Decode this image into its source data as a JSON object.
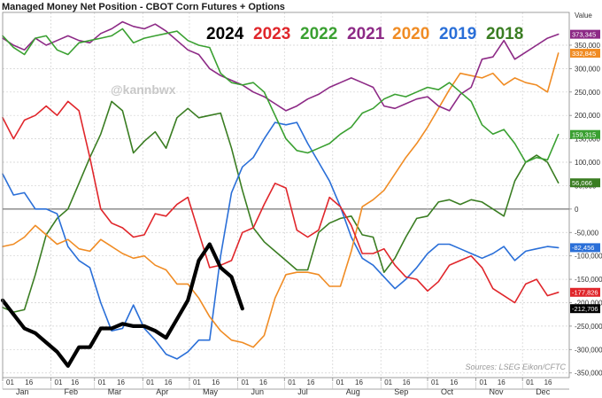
{
  "chart_data": {
    "type": "line",
    "title": "Managed Money Net Position - CBOT Corn Futures + Options",
    "watermark": "@kannbwx",
    "source": "Sources: LSEG Eikon/CFTC",
    "ylabel": "Value",
    "ylim": [
      -360000,
      420000
    ],
    "y_ticks": [
      -350000,
      -300000,
      -250000,
      -200000,
      -150000,
      -100000,
      -50000,
      0,
      50000,
      100000,
      150000,
      200000,
      250000,
      300000,
      350000
    ],
    "y_tick_labels": [
      "-350,000",
      "-300,000",
      "-250,000",
      "-200,000",
      "-150,000",
      "-100,000",
      "-50,000",
      "0",
      "50,000",
      "100,000",
      "150,000",
      "200,000",
      "250,000",
      "300,000",
      "350,000"
    ],
    "x_unit": "week of year",
    "xlim": [
      0,
      52
    ],
    "months": [
      "Jan",
      "Feb",
      "Mar",
      "Apr",
      "May",
      "Jun",
      "Jul",
      "Aug",
      "Sep",
      "Oct",
      "Nov",
      "Dec"
    ],
    "x_tick_labels": [
      "01",
      "16",
      "01",
      "16",
      "01",
      "16",
      "01",
      "16",
      "01",
      "16",
      "01",
      "16",
      "01",
      "16",
      "01",
      "16",
      "01",
      "16",
      "01",
      "16",
      "01",
      "16",
      "01",
      "16"
    ],
    "grid": true,
    "legend": "top",
    "series": [
      {
        "name": "2018",
        "color": "#3a7d22",
        "last_label": "56,066",
        "x": [
          0,
          1,
          2,
          3,
          4,
          5,
          6,
          7,
          8,
          9,
          10,
          11,
          12,
          13,
          14,
          15,
          16,
          17,
          18,
          19,
          20,
          21,
          22,
          23,
          24,
          25,
          26,
          27,
          28,
          29,
          30,
          31,
          32,
          33,
          34,
          35,
          36,
          37,
          38,
          39,
          40,
          41,
          42,
          43,
          44,
          45,
          46,
          47,
          48,
          49,
          50,
          51
        ],
        "y": [
          -210000,
          -220000,
          -215000,
          -140000,
          -55000,
          -20000,
          0,
          55000,
          110000,
          160000,
          230000,
          210000,
          120000,
          145000,
          165000,
          130000,
          195000,
          215000,
          195000,
          200000,
          205000,
          130000,
          40000,
          -40000,
          -70000,
          -90000,
          -110000,
          -130000,
          -130000,
          -50000,
          -30000,
          -20000,
          -15000,
          -55000,
          -60000,
          -135000,
          -105000,
          -60000,
          -20000,
          -15000,
          15000,
          20000,
          10000,
          20000,
          15000,
          0,
          -15000,
          60000,
          100000,
          115000,
          100000,
          56066
        ]
      },
      {
        "name": "2019",
        "color": "#2a6fd8",
        "last_label": "-82,456",
        "x": [
          0,
          1,
          2,
          3,
          4,
          5,
          6,
          7,
          8,
          9,
          10,
          11,
          12,
          13,
          14,
          15,
          16,
          17,
          18,
          19,
          20,
          21,
          22,
          23,
          24,
          25,
          26,
          27,
          28,
          29,
          30,
          31,
          32,
          33,
          34,
          35,
          36,
          37,
          38,
          39,
          40,
          41,
          42,
          43,
          44,
          45,
          46,
          47,
          48,
          49,
          50,
          51
        ],
        "y": [
          75000,
          30000,
          35000,
          0,
          0,
          -10000,
          -80000,
          -110000,
          -125000,
          -200000,
          -260000,
          -255000,
          -205000,
          -255000,
          -280000,
          -310000,
          -320000,
          -305000,
          -280000,
          -280000,
          -100000,
          35000,
          90000,
          110000,
          150000,
          185000,
          180000,
          185000,
          140000,
          100000,
          60000,
          5000,
          -60000,
          -105000,
          -120000,
          -145000,
          -170000,
          -150000,
          -125000,
          -95000,
          -75000,
          -75000,
          -85000,
          -95000,
          -105000,
          -95000,
          -80000,
          -110000,
          -90000,
          -85000,
          -80000,
          -82456
        ]
      },
      {
        "name": "2020",
        "color": "#f08c24",
        "last_label": "332,845",
        "x": [
          0,
          1,
          2,
          3,
          4,
          5,
          6,
          7,
          8,
          9,
          10,
          11,
          12,
          13,
          14,
          15,
          16,
          17,
          18,
          19,
          20,
          21,
          22,
          23,
          24,
          25,
          26,
          27,
          28,
          29,
          30,
          31,
          32,
          33,
          34,
          35,
          36,
          37,
          38,
          39,
          40,
          41,
          42,
          43,
          44,
          45,
          46,
          47,
          48,
          49,
          50,
          51
        ],
        "y": [
          -80000,
          -75000,
          -60000,
          -35000,
          -55000,
          -75000,
          -65000,
          -85000,
          -90000,
          -65000,
          -80000,
          -95000,
          -105000,
          -100000,
          -120000,
          -130000,
          -160000,
          -160000,
          -190000,
          -230000,
          -260000,
          -280000,
          -285000,
          -295000,
          -270000,
          -190000,
          -140000,
          -135000,
          -135000,
          -140000,
          -165000,
          -165000,
          -90000,
          5000,
          20000,
          40000,
          75000,
          110000,
          140000,
          175000,
          215000,
          255000,
          290000,
          285000,
          280000,
          290000,
          265000,
          280000,
          270000,
          265000,
          250000,
          332845
        ]
      },
      {
        "name": "2021",
        "color": "#8d2a86",
        "last_label": "373,345",
        "x": [
          0,
          1,
          2,
          3,
          4,
          5,
          6,
          7,
          8,
          9,
          10,
          11,
          12,
          13,
          14,
          15,
          16,
          17,
          18,
          19,
          20,
          21,
          22,
          23,
          24,
          25,
          26,
          27,
          28,
          29,
          30,
          31,
          32,
          33,
          34,
          35,
          36,
          37,
          38,
          39,
          40,
          41,
          42,
          43,
          44,
          45,
          46,
          47,
          48,
          49,
          50,
          51
        ],
        "y": [
          365000,
          350000,
          340000,
          365000,
          350000,
          360000,
          370000,
          360000,
          355000,
          375000,
          385000,
          400000,
          390000,
          385000,
          395000,
          380000,
          360000,
          340000,
          330000,
          300000,
          285000,
          275000,
          265000,
          250000,
          240000,
          225000,
          210000,
          220000,
          235000,
          245000,
          260000,
          270000,
          280000,
          270000,
          260000,
          220000,
          215000,
          225000,
          235000,
          240000,
          220000,
          210000,
          245000,
          260000,
          320000,
          325000,
          360000,
          320000,
          335000,
          350000,
          365000,
          373345
        ]
      },
      {
        "name": "2022",
        "color": "#3aa031",
        "last_label": "159,315",
        "x": [
          0,
          1,
          2,
          3,
          4,
          5,
          6,
          7,
          8,
          9,
          10,
          11,
          12,
          13,
          14,
          15,
          16,
          17,
          18,
          19,
          20,
          21,
          22,
          23,
          24,
          25,
          26,
          27,
          28,
          29,
          30,
          31,
          32,
          33,
          34,
          35,
          36,
          37,
          38,
          39,
          40,
          41,
          42,
          43,
          44,
          45,
          46,
          47,
          48,
          49,
          50,
          51
        ],
        "y": [
          370000,
          345000,
          330000,
          365000,
          370000,
          340000,
          330000,
          355000,
          360000,
          365000,
          370000,
          385000,
          355000,
          365000,
          370000,
          375000,
          380000,
          360000,
          350000,
          345000,
          290000,
          270000,
          265000,
          270000,
          250000,
          200000,
          150000,
          125000,
          120000,
          130000,
          140000,
          160000,
          175000,
          205000,
          215000,
          235000,
          245000,
          240000,
          250000,
          260000,
          255000,
          270000,
          250000,
          230000,
          180000,
          160000,
          170000,
          140000,
          100000,
          110000,
          105000,
          159315
        ]
      },
      {
        "name": "2023",
        "color": "#e0262b",
        "last_label": "-177,826",
        "x": [
          0,
          1,
          2,
          3,
          4,
          5,
          6,
          7,
          8,
          9,
          10,
          11,
          12,
          13,
          14,
          15,
          16,
          17,
          18,
          19,
          20,
          21,
          22,
          23,
          24,
          25,
          26,
          27,
          28,
          29,
          30,
          31,
          32,
          33,
          34,
          35,
          36,
          37,
          38,
          39,
          40,
          41,
          42,
          43,
          44,
          45,
          46,
          47,
          48,
          49,
          50,
          51
        ],
        "y": [
          195000,
          150000,
          190000,
          200000,
          220000,
          200000,
          230000,
          210000,
          110000,
          0,
          -30000,
          -40000,
          -60000,
          -55000,
          -10000,
          -15000,
          10000,
          25000,
          -50000,
          -125000,
          -120000,
          -110000,
          -50000,
          -40000,
          10000,
          55000,
          45000,
          -45000,
          -60000,
          -45000,
          25000,
          5000,
          -35000,
          -95000,
          -95000,
          -85000,
          -120000,
          -145000,
          -150000,
          -175000,
          -155000,
          -120000,
          -110000,
          -100000,
          -125000,
          -170000,
          -185000,
          -200000,
          -160000,
          -150000,
          -185000,
          -177826
        ]
      },
      {
        "name": "2024",
        "color": "#000000",
        "last_label": "-212,706",
        "x": [
          0,
          1,
          2,
          3,
          4,
          5,
          6,
          7,
          8,
          9,
          10,
          11,
          12,
          13,
          14,
          15,
          16,
          17,
          18,
          19,
          20,
          21,
          22
        ],
        "y": [
          -195000,
          -225000,
          -255000,
          -265000,
          -285000,
          -305000,
          -335000,
          -295000,
          -295000,
          -255000,
          -255000,
          -245000,
          -250000,
          -250000,
          -260000,
          -275000,
          -235000,
          -195000,
          -110000,
          -75000,
          -125000,
          -145000,
          -212706
        ]
      }
    ]
  }
}
